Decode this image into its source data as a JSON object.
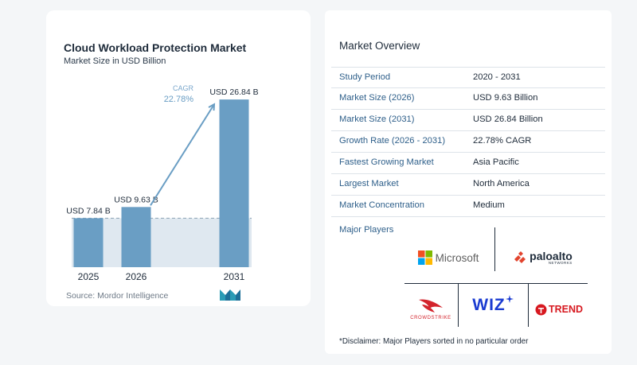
{
  "chart_data": {
    "type": "bar",
    "title": "Cloud Workload Protection Market",
    "subtitle": "Market Size in USD Billion",
    "categories": [
      "2025",
      "2026",
      "2031"
    ],
    "values": [
      7.84,
      9.63,
      26.84
    ],
    "data_labels": [
      "USD 7.84 B",
      "USD 9.63 B",
      "USD 26.84 B"
    ],
    "annotation": {
      "label": "CAGR",
      "value": "22.78%"
    },
    "bar_color": "#6a9ec4",
    "shadow_color": "#dfe8f0",
    "grid": false,
    "ylim": [
      0,
      28
    ]
  },
  "source": "Source:  Mordor Intelligence",
  "overview": {
    "title": "Market Overview",
    "rows": [
      {
        "label": "Study Period",
        "value": "2020 - 2031"
      },
      {
        "label": "Market Size (2026)",
        "value": "USD 9.63 Billion"
      },
      {
        "label": "Market Size (2031)",
        "value": "USD 26.84 Billion"
      },
      {
        "label": "Growth Rate (2026 - 2031)",
        "value": "22.78% CAGR"
      },
      {
        "label": "Fastest Growing Market",
        "value": "Asia Pacific"
      },
      {
        "label": "Largest Market",
        "value": "North America"
      },
      {
        "label": "Market Concentration",
        "value": "Medium"
      }
    ]
  },
  "players": {
    "title": "Major Players",
    "microsoft": "Microsoft",
    "paloalto": "paloalto",
    "paloalto_sub": "NETWORKS",
    "wiz": "WIZ",
    "crowdstrike": "CROWDSTRIKE",
    "trend": "TREND"
  },
  "disclaimer": "*Disclaimer: Major Players sorted in no particular order"
}
